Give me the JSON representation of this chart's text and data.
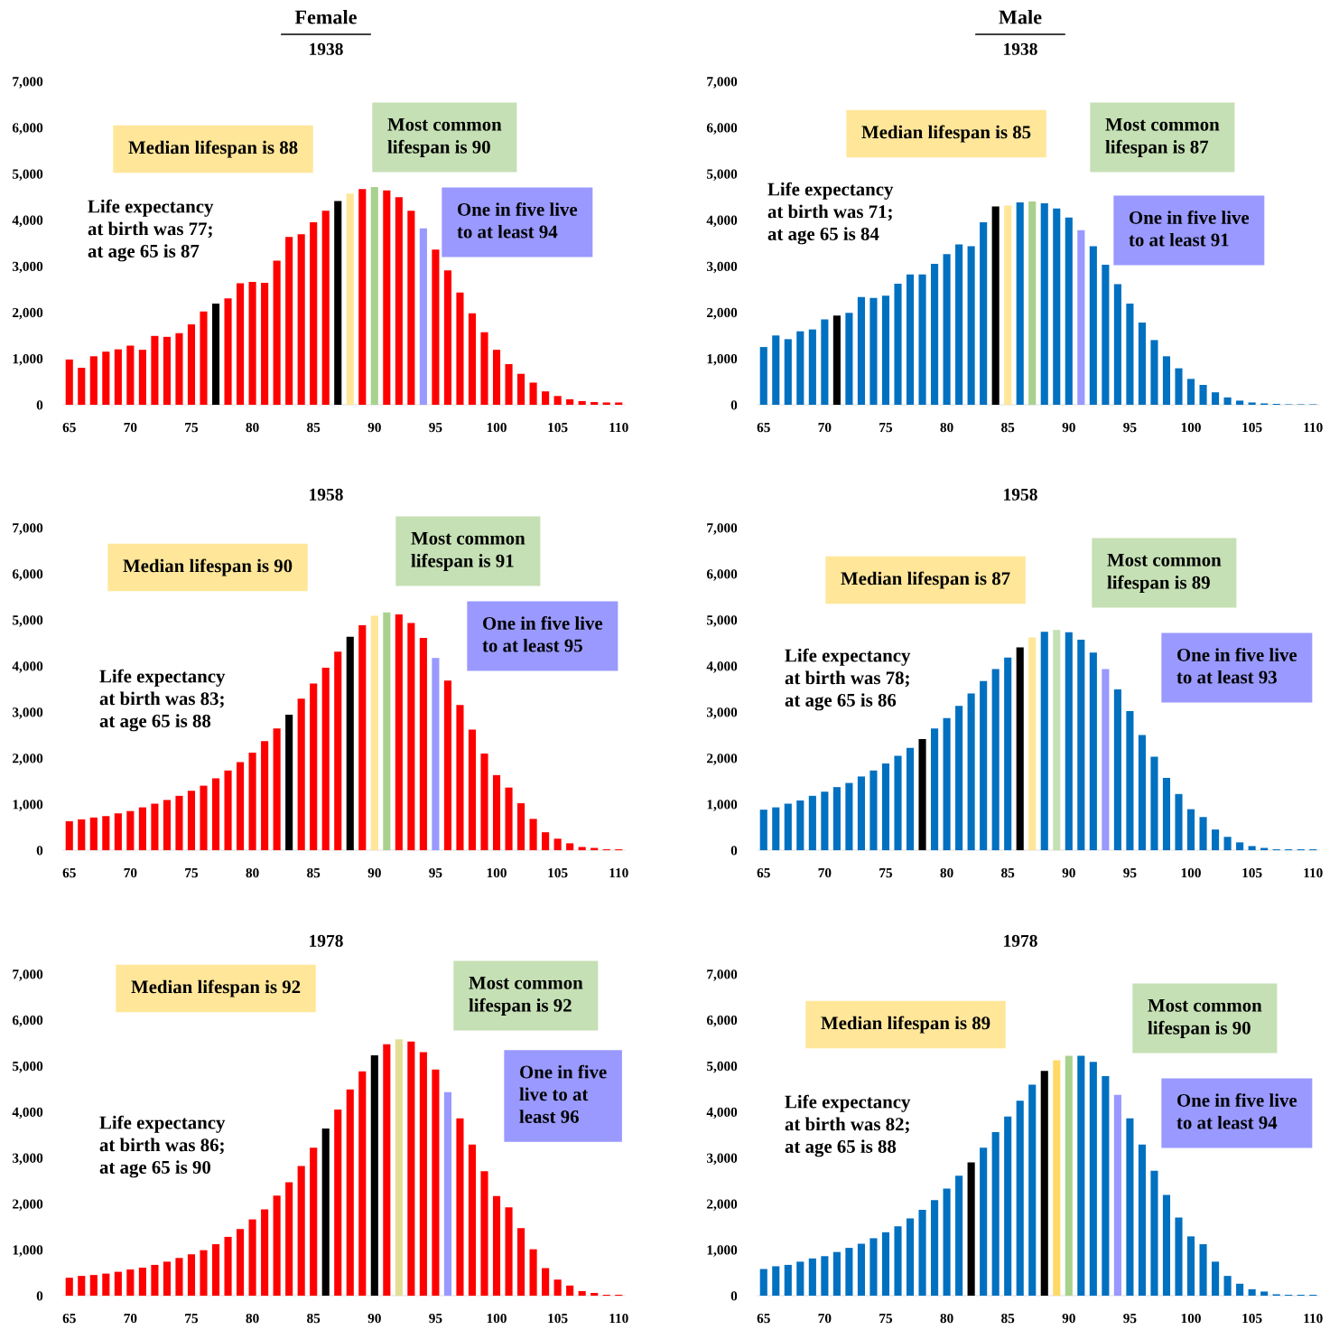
{
  "chart_data": [
    {
      "type": "bar",
      "title": "Female",
      "subtitle": "1938",
      "categories": [
        "65",
        null,
        null,
        null,
        null,
        "70",
        null,
        null,
        null,
        null,
        "75",
        null,
        null,
        null,
        null,
        "80",
        null,
        null,
        null,
        null,
        "85",
        null,
        null,
        null,
        null,
        "90",
        null,
        null,
        null,
        null,
        "95",
        null,
        null,
        null,
        null,
        "100",
        null,
        null,
        null,
        null,
        "105",
        null,
        null,
        null,
        null,
        "110"
      ],
      "values": [
        980,
        800,
        1050,
        1150,
        1200,
        1280,
        1190,
        1490,
        1470,
        1550,
        1740,
        2020,
        2190,
        2300,
        2630,
        2660,
        2640,
        3120,
        3630,
        3690,
        3950,
        4200,
        4410,
        4570,
        4670,
        4710,
        4640,
        4490,
        4200,
        3820,
        3360,
        2910,
        2430,
        1980,
        1570,
        1190,
        880,
        670,
        480,
        290,
        190,
        120,
        80,
        60,
        50,
        50
      ],
      "colors": [
        "#ff0000",
        "#ff0000",
        "#ff0000",
        "#ff0000",
        "#ff0000",
        "#ff0000",
        "#ff0000",
        "#ff0000",
        "#ff0000",
        "#ff0000",
        "#ff0000",
        "#ff0000",
        "#000000",
        "#ff0000",
        "#ff0000",
        "#ff0000",
        "#ff0000",
        "#ff0000",
        "#ff0000",
        "#ff0000",
        "#ff0000",
        "#ff0000",
        "#000000",
        "#ffe699",
        "#ff0000",
        "#a9d18e",
        "#ff0000",
        "#ff0000",
        "#ff0000",
        "#9999ff",
        "#ff0000",
        "#ff0000",
        "#ff0000",
        "#ff0000",
        "#ff0000",
        "#ff0000",
        "#ff0000",
        "#ff0000",
        "#ff0000",
        "#ff0000",
        "#ff0000",
        "#ff0000",
        "#ff0000",
        "#ff0000",
        "#ff0000",
        "#ff0000"
      ],
      "ylim": [
        0,
        7000
      ],
      "yticks": [
        0,
        {
          "value": 1000,
          "label": "1,000"
        },
        {
          "value": 2000,
          "label": "2,000"
        },
        {
          "value": 3000,
          "label": "3,000"
        },
        {
          "value": 4000,
          "label": "4,000"
        },
        {
          "value": 5000,
          "label": "5,000"
        },
        {
          "value": 6000,
          "label": "6,000"
        },
        {
          "value": 7000,
          "label": "7,000"
        }
      ],
      "annotations": [
        "Median lifespan is 88",
        "Most common\nlifespan is 90",
        "One in five live\nto at least 94",
        "Life expectancy\nat birth was 77;\nat age 65 is 87"
      ]
    },
    {
      "type": "bar",
      "title": "Male",
      "subtitle": "1938",
      "categories": [
        "65",
        null,
        null,
        null,
        null,
        "70",
        null,
        null,
        null,
        null,
        "75",
        null,
        null,
        null,
        null,
        "80",
        null,
        null,
        null,
        null,
        "85",
        null,
        null,
        null,
        null,
        "90",
        null,
        null,
        null,
        null,
        "95",
        null,
        null,
        null,
        null,
        "100",
        null,
        null,
        null,
        null,
        "105",
        null,
        null,
        null,
        null,
        "110"
      ],
      "values": [
        1250,
        1500,
        1420,
        1590,
        1630,
        1850,
        1930,
        1990,
        2330,
        2310,
        2360,
        2620,
        2820,
        2820,
        3050,
        3260,
        3470,
        3430,
        3950,
        4290,
        4310,
        4380,
        4400,
        4360,
        4250,
        4050,
        3780,
        3430,
        3030,
        2610,
        2190,
        1780,
        1400,
        1050,
        790,
        560,
        430,
        270,
        160,
        90,
        50,
        30,
        20,
        10,
        10,
        10
      ],
      "colors": [
        "#0070c0",
        "#0070c0",
        "#0070c0",
        "#0070c0",
        "#0070c0",
        "#0070c0",
        "#000000",
        "#0070c0",
        "#0070c0",
        "#0070c0",
        "#0070c0",
        "#0070c0",
        "#0070c0",
        "#0070c0",
        "#0070c0",
        "#0070c0",
        "#0070c0",
        "#0070c0",
        "#0070c0",
        "#000000",
        "#ffe699",
        "#0070c0",
        "#a9d18e",
        "#0070c0",
        "#0070c0",
        "#0070c0",
        "#9999ff",
        "#0070c0",
        "#0070c0",
        "#0070c0",
        "#0070c0",
        "#0070c0",
        "#0070c0",
        "#0070c0",
        "#0070c0",
        "#0070c0",
        "#0070c0",
        "#0070c0",
        "#0070c0",
        "#0070c0",
        "#0070c0",
        "#0070c0",
        "#0070c0",
        "#0070c0",
        "#0070c0",
        "#0070c0"
      ],
      "ylim": [
        0,
        7000
      ],
      "yticks": [
        0,
        {
          "value": 1000,
          "label": "1,000"
        },
        {
          "value": 2000,
          "label": "2,000"
        },
        {
          "value": 3000,
          "label": "3,000"
        },
        {
          "value": 4000,
          "label": "4,000"
        },
        {
          "value": 5000,
          "label": "5,000"
        },
        {
          "value": 6000,
          "label": "6,000"
        },
        {
          "value": 7000,
          "label": "7,000"
        }
      ],
      "annotations": [
        "Median lifespan is 85",
        "Most common\nlifespan is 87",
        "One in five live\nto at least 91",
        "Life expectancy\nat birth was 71;\nat age 65 is 84"
      ]
    },
    {
      "type": "bar",
      "title": "1958",
      "categories": [
        "65",
        null,
        null,
        null,
        null,
        "70",
        null,
        null,
        null,
        null,
        "75",
        null,
        null,
        null,
        null,
        "80",
        null,
        null,
        null,
        null,
        "85",
        null,
        null,
        null,
        null,
        "90",
        null,
        null,
        null,
        null,
        "95",
        null,
        null,
        null,
        null,
        "100",
        null,
        null,
        null,
        null,
        "105",
        null,
        null,
        null,
        null,
        "110"
      ],
      "values": [
        630,
        670,
        710,
        740,
        800,
        850,
        930,
        1010,
        1090,
        1180,
        1290,
        1400,
        1560,
        1730,
        1910,
        2120,
        2370,
        2640,
        2940,
        3290,
        3620,
        3960,
        4310,
        4630,
        4880,
        5090,
        5160,
        5120,
        4930,
        4610,
        4170,
        3680,
        3150,
        2620,
        2100,
        1630,
        1360,
        1020,
        680,
        390,
        250,
        150,
        70,
        50,
        20,
        20
      ],
      "colors": [
        "#ff0000",
        "#ff0000",
        "#ff0000",
        "#ff0000",
        "#ff0000",
        "#ff0000",
        "#ff0000",
        "#ff0000",
        "#ff0000",
        "#ff0000",
        "#ff0000",
        "#ff0000",
        "#ff0000",
        "#ff0000",
        "#ff0000",
        "#ff0000",
        "#ff0000",
        "#ff0000",
        "#000000",
        "#ff0000",
        "#ff0000",
        "#ff0000",
        "#ff0000",
        "#000000",
        "#ff0000",
        "#ffe699",
        "#a9d18e",
        "#ff0000",
        "#ff0000",
        "#ff0000",
        "#9999ff",
        "#ff0000",
        "#ff0000",
        "#ff0000",
        "#ff0000",
        "#ff0000",
        "#ff0000",
        "#ff0000",
        "#ff0000",
        "#ff0000",
        "#ff0000",
        "#ff0000",
        "#ff0000",
        "#ff0000",
        "#ff0000",
        "#ff0000"
      ],
      "ylim": [
        0,
        7000
      ],
      "yticks": [
        0,
        {
          "value": 1000,
          "label": "1,000"
        },
        {
          "value": 2000,
          "label": "2,000"
        },
        {
          "value": 3000,
          "label": "3,000"
        },
        {
          "value": 4000,
          "label": "4,000"
        },
        {
          "value": 5000,
          "label": "5,000"
        },
        {
          "value": 6000,
          "label": "6,000"
        },
        {
          "value": 7000,
          "label": "7,000"
        }
      ],
      "annotations": [
        "Median lifespan is 90",
        "Most common\nlifespan is 91",
        "One in five live\nto at least 95",
        "Life expectancy\nat birth was 83;\nat age 65 is 88"
      ]
    },
    {
      "type": "bar",
      "title": "1958",
      "categories": [
        "65",
        null,
        null,
        null,
        null,
        "70",
        null,
        null,
        null,
        null,
        "75",
        null,
        null,
        null,
        null,
        "80",
        null,
        null,
        null,
        null,
        "85",
        null,
        null,
        null,
        null,
        "90",
        null,
        null,
        null,
        null,
        "95",
        null,
        null,
        null,
        null,
        "100",
        null,
        null,
        null,
        null,
        "105",
        null,
        null,
        null,
        null,
        "110"
      ],
      "values": [
        880,
        930,
        1010,
        1080,
        1180,
        1270,
        1370,
        1460,
        1600,
        1730,
        1880,
        2050,
        2220,
        2410,
        2640,
        2870,
        3130,
        3400,
        3670,
        3930,
        4180,
        4400,
        4620,
        4740,
        4780,
        4730,
        4570,
        4290,
        3930,
        3490,
        3020,
        2500,
        2030,
        1570,
        1220,
        890,
        720,
        450,
        290,
        170,
        90,
        50,
        20,
        20,
        20,
        20
      ],
      "colors": [
        "#0070c0",
        "#0070c0",
        "#0070c0",
        "#0070c0",
        "#0070c0",
        "#0070c0",
        "#0070c0",
        "#0070c0",
        "#0070c0",
        "#0070c0",
        "#0070c0",
        "#0070c0",
        "#0070c0",
        "#000000",
        "#0070c0",
        "#0070c0",
        "#0070c0",
        "#0070c0",
        "#0070c0",
        "#0070c0",
        "#0070c0",
        "#000000",
        "#ffe699",
        "#0070c0",
        "#c5e0b4",
        "#0070c0",
        "#0070c0",
        "#0070c0",
        "#9999ff",
        "#0070c0",
        "#0070c0",
        "#0070c0",
        "#0070c0",
        "#0070c0",
        "#0070c0",
        "#0070c0",
        "#0070c0",
        "#0070c0",
        "#0070c0",
        "#0070c0",
        "#0070c0",
        "#0070c0",
        "#0070c0",
        "#0070c0",
        "#0070c0",
        "#0070c0"
      ],
      "ylim": [
        0,
        7000
      ],
      "yticks": [
        0,
        {
          "value": 1000,
          "label": "1,000"
        },
        {
          "value": 2000,
          "label": "2,000"
        },
        {
          "value": 3000,
          "label": "3,000"
        },
        {
          "value": 4000,
          "label": "4,000"
        },
        {
          "value": 5000,
          "label": "5,000"
        },
        {
          "value": 6000,
          "label": "6,000"
        },
        {
          "value": 7000,
          "label": "7,000"
        }
      ],
      "annotations": [
        "Median lifespan is 87",
        "Most common\nlifespan is 89",
        "One in five live\nto at least 93",
        "Life expectancy\nat birth was 78;\nat age 65 is 86"
      ]
    },
    {
      "type": "bar",
      "title": "1978",
      "categories": [
        "65",
        null,
        null,
        null,
        null,
        "70",
        null,
        null,
        null,
        null,
        "75",
        null,
        null,
        null,
        null,
        "80",
        null,
        null,
        null,
        null,
        "85",
        null,
        null,
        null,
        null,
        "90",
        null,
        null,
        null,
        null,
        "95",
        null,
        null,
        null,
        null,
        "100",
        null,
        null,
        null,
        null,
        "105",
        null,
        null,
        null,
        null,
        "110"
      ],
      "values": [
        390,
        430,
        450,
        480,
        520,
        570,
        610,
        670,
        740,
        820,
        900,
        990,
        1120,
        1280,
        1450,
        1660,
        1880,
        2180,
        2470,
        2820,
        3220,
        3640,
        4050,
        4490,
        4880,
        5230,
        5470,
        5580,
        5530,
        5300,
        4920,
        4430,
        3860,
        3290,
        2710,
        2170,
        1920,
        1470,
        1010,
        600,
        350,
        220,
        100,
        60,
        20,
        20
      ],
      "colors": [
        "#ff0000",
        "#ff0000",
        "#ff0000",
        "#ff0000",
        "#ff0000",
        "#ff0000",
        "#ff0000",
        "#ff0000",
        "#ff0000",
        "#ff0000",
        "#ff0000",
        "#ff0000",
        "#ff0000",
        "#ff0000",
        "#ff0000",
        "#ff0000",
        "#ff0000",
        "#ff0000",
        "#ff0000",
        "#ff0000",
        "#ff0000",
        "#000000",
        "#ff0000",
        "#ff0000",
        "#ff0000",
        "#000000",
        "#ff0000",
        "#e3dd96",
        "#ff0000",
        "#ff0000",
        "#ff0000",
        "#9999ff",
        "#ff0000",
        "#ff0000",
        "#ff0000",
        "#ff0000",
        "#ff0000",
        "#ff0000",
        "#ff0000",
        "#ff0000",
        "#ff0000",
        "#ff0000",
        "#ff0000",
        "#ff0000",
        "#ff0000",
        "#ff0000"
      ],
      "ylim": [
        0,
        7000
      ],
      "yticks": [
        0,
        {
          "value": 1000,
          "label": "1,000"
        },
        {
          "value": 2000,
          "label": "2,000"
        },
        {
          "value": 3000,
          "label": "3,000"
        },
        {
          "value": 4000,
          "label": "4,000"
        },
        {
          "value": 5000,
          "label": "5,000"
        },
        {
          "value": 6000,
          "label": "6,000"
        },
        {
          "value": 7000,
          "label": "7,000"
        }
      ],
      "annotations": [
        "Median lifespan is 92",
        "Most common\nlifespan is 92",
        "One in five\nlive to at\nleast 96",
        "Life expectancy\nat birth was 86;\nat age 65 is 90"
      ]
    },
    {
      "type": "bar",
      "title": "1978",
      "categories": [
        "65",
        null,
        null,
        null,
        null,
        "70",
        null,
        null,
        null,
        null,
        "75",
        null,
        null,
        null,
        null,
        "80",
        null,
        null,
        null,
        null,
        "85",
        null,
        null,
        null,
        null,
        "90",
        null,
        null,
        null,
        null,
        "95",
        null,
        null,
        null,
        null,
        "100",
        null,
        null,
        null,
        null,
        "105",
        null,
        null,
        null,
        null,
        "110"
      ],
      "values": [
        580,
        640,
        670,
        740,
        810,
        860,
        950,
        1040,
        1130,
        1250,
        1380,
        1510,
        1680,
        1870,
        2080,
        2330,
        2610,
        2900,
        3220,
        3560,
        3900,
        4240,
        4590,
        4890,
        5120,
        5220,
        5220,
        5090,
        4780,
        4370,
        3860,
        3290,
        2720,
        2190,
        1700,
        1290,
        1120,
        740,
        430,
        260,
        140,
        90,
        30,
        20,
        20,
        20
      ],
      "colors": [
        "#0070c0",
        "#0070c0",
        "#0070c0",
        "#0070c0",
        "#0070c0",
        "#0070c0",
        "#0070c0",
        "#0070c0",
        "#0070c0",
        "#0070c0",
        "#0070c0",
        "#0070c0",
        "#0070c0",
        "#0070c0",
        "#0070c0",
        "#0070c0",
        "#0070c0",
        "#000000",
        "#0070c0",
        "#0070c0",
        "#0070c0",
        "#0070c0",
        "#0070c0",
        "#000000",
        "#ffd966",
        "#a9d18e",
        "#0070c0",
        "#0070c0",
        "#0070c0",
        "#9999ff",
        "#0070c0",
        "#0070c0",
        "#0070c0",
        "#0070c0",
        "#0070c0",
        "#0070c0",
        "#0070c0",
        "#0070c0",
        "#0070c0",
        "#0070c0",
        "#0070c0",
        "#0070c0",
        "#0070c0",
        "#0070c0",
        "#0070c0",
        "#0070c0"
      ],
      "ylim": [
        0,
        7000
      ],
      "yticks": [
        0,
        {
          "value": 1000,
          "label": "1,000"
        },
        {
          "value": 2000,
          "label": "2,000"
        },
        {
          "value": 3000,
          "label": "3,000"
        },
        {
          "value": 4000,
          "label": "4,000"
        },
        {
          "value": 5000,
          "label": "5,000"
        },
        {
          "value": 6000,
          "label": "6,000"
        },
        {
          "value": 7000,
          "label": "7,000"
        }
      ],
      "annotations": [
        "Median lifespan is 89",
        "Most common\nlifespan is 90",
        "One in five live\nto at least 94",
        "Life expectancy\nat birth was 82;\nat age 65 is 88"
      ]
    }
  ]
}
